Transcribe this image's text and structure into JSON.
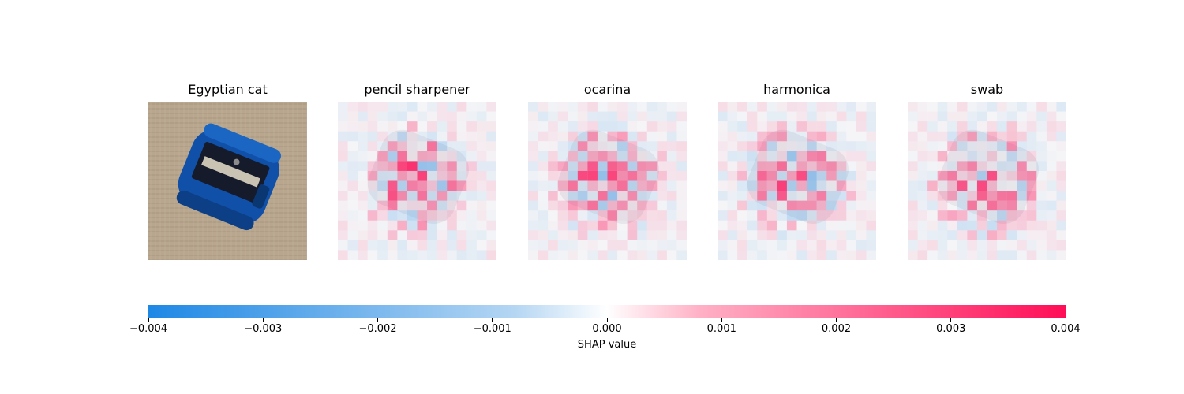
{
  "chart_data": {
    "type": "heatmap",
    "panels": [
      {
        "title": "Egyptian cat",
        "kind": "image"
      },
      {
        "title": "pencil sharpener",
        "kind": "shap"
      },
      {
        "title": "ocarina",
        "kind": "shap"
      },
      {
        "title": "harmonica",
        "kind": "shap"
      },
      {
        "title": "swab",
        "kind": "shap"
      }
    ],
    "colorbar": {
      "label": "SHAP value",
      "range": [
        -0.004,
        0.004
      ],
      "ticks": [
        "−0.004",
        "−0.003",
        "−0.002",
        "−0.001",
        "0.000",
        "0.001",
        "0.002",
        "0.003",
        "0.004"
      ],
      "tick_values": [
        -0.004,
        -0.003,
        -0.002,
        -0.001,
        0.0,
        0.001,
        0.002,
        0.003,
        0.004
      ],
      "colors": {
        "negative": "#1e88e5",
        "zero": "#ffffff",
        "positive": "#ff0d57"
      }
    },
    "grid": false
  }
}
